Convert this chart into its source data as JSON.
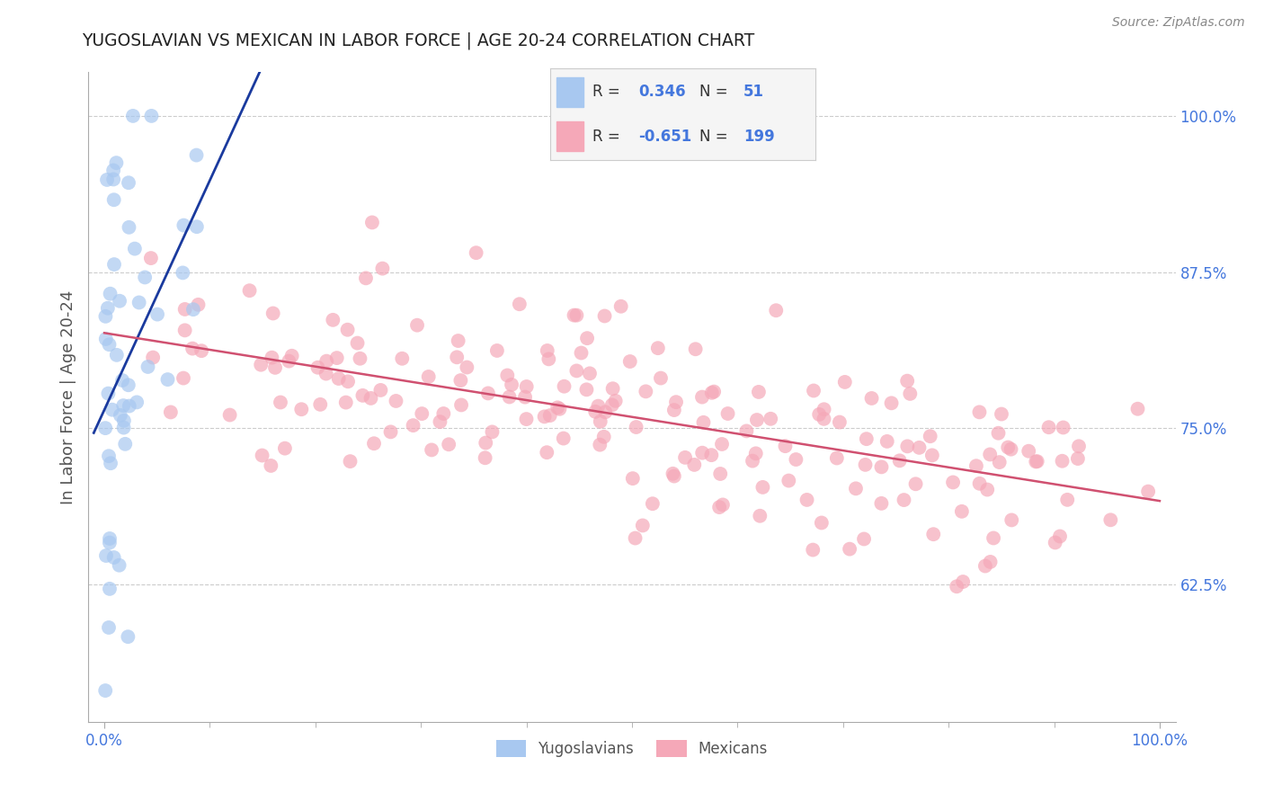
{
  "title": "YUGOSLAVIAN VS MEXICAN IN LABOR FORCE | AGE 20-24 CORRELATION CHART",
  "source_text": "Source: ZipAtlas.com",
  "ylabel": "In Labor Force | Age 20-24",
  "blue_R": 0.346,
  "blue_N": 51,
  "pink_R": -0.651,
  "pink_N": 199,
  "blue_color": "#a8c8f0",
  "pink_color": "#f5a8b8",
  "blue_line_color": "#1a3a9e",
  "pink_line_color": "#d05070",
  "background_color": "#ffffff",
  "grid_color": "#cccccc",
  "title_color": "#222222",
  "axis_color": "#555555",
  "ytick_color": "#4477dd",
  "xtick_color": "#4477dd",
  "legend_text_color": "#333333",
  "legend_value_color": "#4477dd",
  "legend_box_color": "#f5f5f5",
  "legend_border_color": "#cccccc",
  "source_color": "#888888"
}
